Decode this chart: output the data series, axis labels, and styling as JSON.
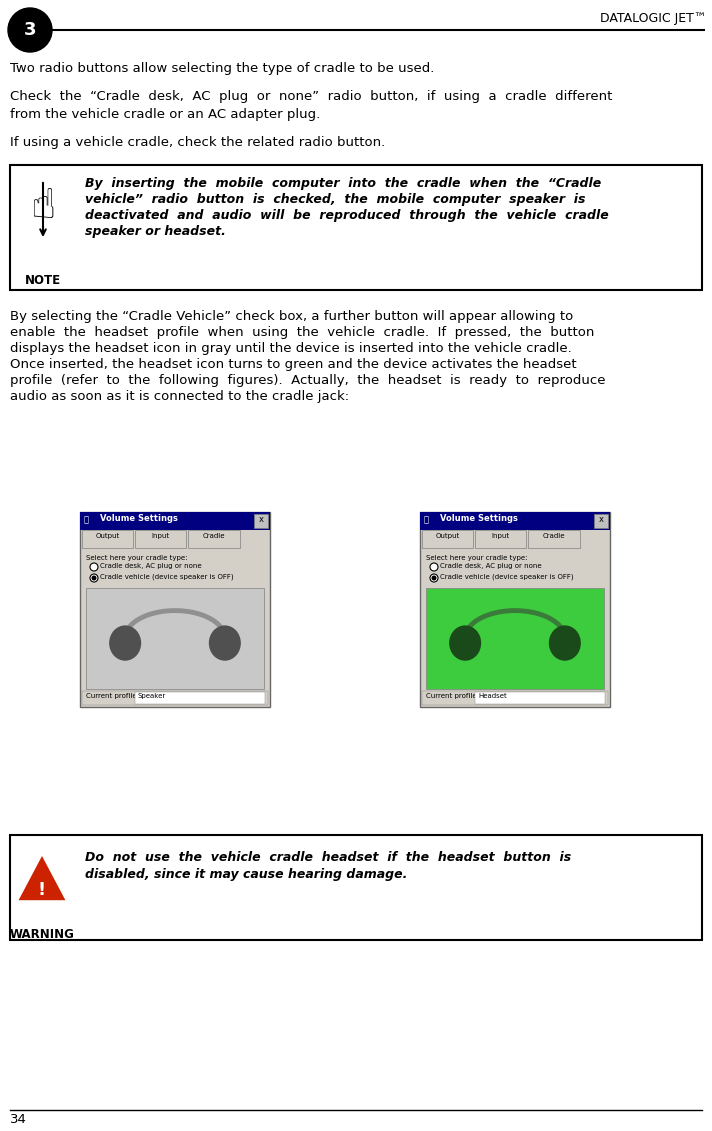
{
  "page_title": "DATALOGIC JET™",
  "chapter_num": "3",
  "page_num": "34",
  "bg_color": "#ffffff",
  "para1": "Two radio buttons allow selecting the type of cradle to be used.",
  "para2_line1": "Check  the  “Cradle  desk,  AC  plug  or  none”  radio  button,  if  using  a  cradle  different",
  "para2_line2": "from the vehicle cradle or an AC adapter plug.",
  "para3": "If using a vehicle cradle, check the related radio button.",
  "note_text_line1": "By  inserting  the  mobile  computer  into  the  cradle  when  the  “Cradle",
  "note_text_line2": "vehicle”  radio  button  is  checked,  the  mobile  computer  speaker  is",
  "note_text_line3": "deactivated  and  audio  will  be  reproduced  through  the  vehicle  cradle",
  "note_text_line4": "speaker or headset.",
  "note_label": "NOTE",
  "body_line1": "By selecting the “Cradle Vehicle” check box, a further button will appear allowing to",
  "body_line2": "enable  the  headset  profile  when  using  the  vehicle  cradle.  If  pressed,  the  button",
  "body_line3": "displays the headset icon in gray until the device is inserted into the vehicle cradle.",
  "body_line4": "Once inserted, the headset icon turns to green and the device activates the headset",
  "body_line5": "profile  (refer  to  the  following  figures).  Actually,  the  headset  is  ready  to  reproduce",
  "body_line6": "audio as soon as it is connected to the cradle jack:",
  "warn_line1": "Do  not  use  the  vehicle  cradle  headset  if  the  headset  button  is",
  "warn_line2": "disabled, since it may cause hearing damage.",
  "warning_label": "WARNING",
  "ss_title": "Volume Settings",
  "ss_label1": "Select here your cradle type:",
  "ss_radio1": "Cradle desk, AC plug or none",
  "ss_radio2": "Cradle vehicle (device speaker is OFF)",
  "ss_profile_l": "Current profile:   Speaker",
  "ss_profile_r": "Current profile:   Headset",
  "ss_tabs": "Output   Input   Cradle"
}
